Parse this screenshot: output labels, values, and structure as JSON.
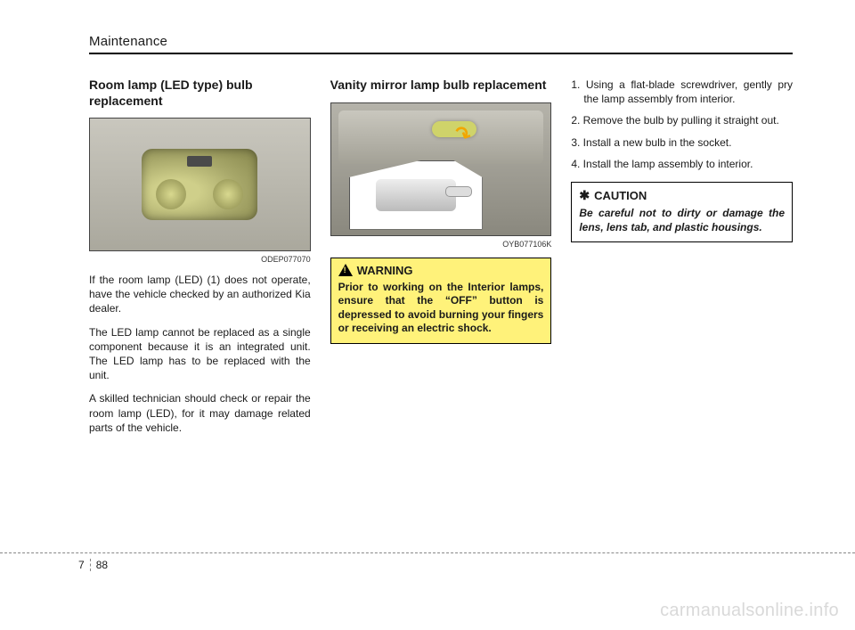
{
  "section_title": "Maintenance",
  "page": {
    "chapter": "7",
    "number": "88"
  },
  "watermark": "carmanualsonline.info",
  "col1": {
    "heading": "Room lamp (LED type) bulb replacement",
    "figure_code": "ODEP077070",
    "paragraphs": [
      "If the room lamp (LED) (1) does not operate, have the vehicle checked by an authorized Kia dealer.",
      "The LED lamp cannot be replaced as a single component because it is an integrated unit. The LED lamp has to be replaced with the unit.",
      "A skilled technician should check or repair the room lamp (LED), for it may damage related parts of the vehicle."
    ]
  },
  "col2": {
    "heading": "Vanity mirror lamp bulb replacement",
    "figure_code": "OYB077106K",
    "warning_label": "WARNING",
    "warning_text": "Prior to working on the Interior lamps, ensure that the “OFF” button is depressed to avoid burning your fingers or receiving an electric shock."
  },
  "col3": {
    "steps": [
      "1. Using a flat-blade screwdriver, gently pry the lamp assembly from interior.",
      "2. Remove the bulb by pulling it straight out.",
      "3. Install a new bulb in the socket.",
      "4. Install the lamp assembly to interior."
    ],
    "caution_label": "CAUTION",
    "caution_icon": "✱",
    "caution_text": "Be careful not to dirty or damage the lens, lens tab, and plastic housings."
  }
}
